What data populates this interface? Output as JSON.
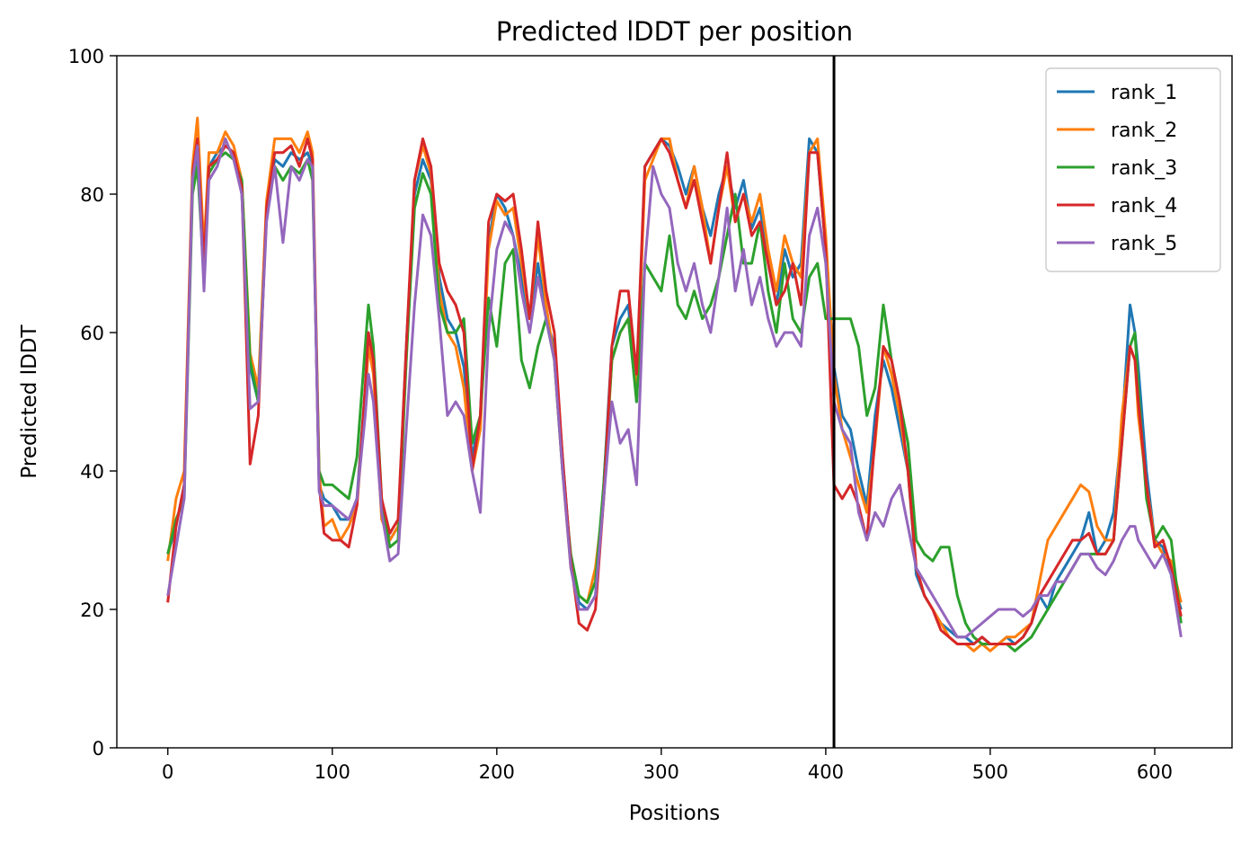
{
  "chart_data": {
    "type": "line",
    "title": "Predicted lDDT per position",
    "xlabel": "Positions",
    "ylabel": "Predicted lDDT",
    "xlim": [
      -31,
      647
    ],
    "ylim": [
      0,
      100
    ],
    "x_ticks": [
      0,
      100,
      200,
      300,
      400,
      500,
      600
    ],
    "y_ticks": [
      0,
      20,
      40,
      60,
      80,
      100
    ],
    "vline_x": 405,
    "legend_position": "top-right",
    "grid": false,
    "series": [
      {
        "name": "rank_1",
        "color": "#1f77b4",
        "x": [
          0,
          5,
          10,
          15,
          18,
          22,
          25,
          30,
          35,
          40,
          45,
          50,
          55,
          60,
          65,
          70,
          75,
          80,
          85,
          88,
          92,
          95,
          100,
          105,
          110,
          115,
          120,
          122,
          125,
          130,
          135,
          140,
          145,
          150,
          155,
          160,
          165,
          170,
          175,
          180,
          185,
          190,
          195,
          200,
          205,
          210,
          215,
          220,
          225,
          230,
          235,
          240,
          245,
          250,
          255,
          260,
          265,
          270,
          275,
          280,
          285,
          290,
          295,
          300,
          305,
          310,
          315,
          320,
          325,
          330,
          335,
          340,
          345,
          350,
          355,
          360,
          365,
          370,
          375,
          380,
          385,
          390,
          395,
          400,
          405,
          410,
          415,
          420,
          425,
          430,
          435,
          440,
          445,
          450,
          455,
          460,
          465,
          470,
          475,
          480,
          485,
          490,
          495,
          500,
          505,
          510,
          515,
          520,
          525,
          530,
          535,
          540,
          545,
          550,
          555,
          560,
          565,
          570,
          575,
          580,
          585,
          588,
          590,
          595,
          600,
          605,
          610,
          616
        ],
        "values": [
          28,
          32,
          38,
          82,
          86,
          70,
          84,
          86,
          87,
          86,
          80,
          55,
          50,
          78,
          85,
          84,
          86,
          85,
          86,
          84,
          38,
          36,
          35,
          33,
          33,
          36,
          52,
          60,
          55,
          35,
          30,
          32,
          58,
          80,
          85,
          82,
          68,
          62,
          60,
          55,
          42,
          48,
          73,
          80,
          78,
          74,
          68,
          62,
          70,
          62,
          58,
          42,
          27,
          21,
          20,
          22,
          38,
          58,
          62,
          64,
          50,
          84,
          86,
          88,
          87,
          84,
          80,
          84,
          78,
          74,
          80,
          84,
          78,
          82,
          75,
          78,
          70,
          64,
          72,
          68,
          70,
          88,
          86,
          72,
          55,
          48,
          46,
          40,
          35,
          48,
          56,
          52,
          46,
          40,
          25,
          22,
          20,
          18,
          17,
          16,
          16,
          15,
          16,
          15,
          15,
          16,
          15,
          16,
          18,
          22,
          20,
          24,
          26,
          28,
          30,
          34,
          28,
          30,
          34,
          46,
          64,
          60,
          55,
          40,
          30,
          29,
          25,
          20
        ]
      },
      {
        "name": "rank_2",
        "color": "#ff7f0e",
        "x": [
          0,
          5,
          10,
          15,
          18,
          22,
          25,
          30,
          35,
          40,
          45,
          50,
          55,
          60,
          65,
          70,
          75,
          80,
          85,
          88,
          92,
          95,
          100,
          105,
          110,
          115,
          120,
          122,
          125,
          130,
          135,
          140,
          145,
          150,
          155,
          160,
          165,
          170,
          175,
          180,
          185,
          190,
          195,
          200,
          205,
          210,
          215,
          220,
          225,
          230,
          235,
          240,
          245,
          250,
          255,
          260,
          265,
          270,
          275,
          280,
          285,
          290,
          295,
          300,
          305,
          310,
          315,
          320,
          325,
          330,
          335,
          340,
          345,
          350,
          355,
          360,
          365,
          370,
          375,
          380,
          385,
          390,
          395,
          400,
          405,
          410,
          415,
          420,
          425,
          430,
          435,
          440,
          445,
          450,
          455,
          460,
          465,
          470,
          475,
          480,
          485,
          490,
          495,
          500,
          505,
          510,
          515,
          520,
          525,
          530,
          535,
          540,
          545,
          550,
          555,
          560,
          565,
          570,
          575,
          580,
          585,
          588,
          590,
          595,
          600,
          605,
          610,
          616
        ],
        "values": [
          27,
          36,
          40,
          84,
          91,
          72,
          86,
          86,
          89,
          87,
          82,
          57,
          52,
          79,
          88,
          88,
          88,
          86,
          89,
          86,
          40,
          32,
          33,
          30,
          32,
          35,
          50,
          58,
          54,
          33,
          30,
          32,
          56,
          82,
          87,
          83,
          66,
          60,
          58,
          52,
          40,
          46,
          72,
          79,
          77,
          78,
          70,
          62,
          74,
          64,
          56,
          40,
          26,
          22,
          21,
          26,
          36,
          56,
          60,
          62,
          52,
          82,
          85,
          88,
          88,
          82,
          78,
          84,
          78,
          70,
          78,
          84,
          76,
          80,
          76,
          80,
          72,
          66,
          74,
          70,
          68,
          86,
          88,
          74,
          54,
          46,
          42,
          38,
          34,
          44,
          58,
          54,
          48,
          40,
          26,
          22,
          20,
          18,
          16,
          15,
          15,
          14,
          15,
          14,
          15,
          16,
          16,
          17,
          18,
          24,
          30,
          32,
          34,
          36,
          38,
          37,
          32,
          30,
          30,
          48,
          58,
          56,
          48,
          38,
          30,
          28,
          27,
          21
        ]
      },
      {
        "name": "rank_3",
        "color": "#2ca02c",
        "x": [
          0,
          5,
          10,
          15,
          18,
          22,
          25,
          30,
          35,
          40,
          45,
          50,
          55,
          60,
          65,
          70,
          75,
          80,
          85,
          88,
          92,
          95,
          100,
          105,
          110,
          115,
          120,
          122,
          125,
          130,
          135,
          140,
          145,
          150,
          155,
          160,
          165,
          170,
          175,
          180,
          185,
          190,
          195,
          200,
          205,
          210,
          215,
          220,
          225,
          230,
          235,
          240,
          245,
          250,
          255,
          260,
          265,
          270,
          275,
          280,
          285,
          290,
          295,
          300,
          305,
          310,
          315,
          320,
          325,
          330,
          335,
          340,
          345,
          350,
          355,
          360,
          365,
          370,
          375,
          380,
          385,
          390,
          395,
          400,
          405,
          410,
          415,
          420,
          425,
          430,
          435,
          440,
          445,
          450,
          455,
          460,
          465,
          470,
          475,
          480,
          485,
          490,
          495,
          500,
          505,
          510,
          515,
          520,
          525,
          530,
          535,
          540,
          545,
          550,
          555,
          560,
          565,
          570,
          575,
          580,
          585,
          588,
          590,
          595,
          600,
          605,
          610,
          616
        ],
        "values": [
          28,
          33,
          36,
          80,
          84,
          68,
          83,
          85,
          86,
          85,
          82,
          56,
          50,
          77,
          84,
          82,
          84,
          83,
          85,
          82,
          40,
          38,
          38,
          37,
          36,
          42,
          58,
          64,
          58,
          36,
          29,
          30,
          56,
          78,
          83,
          80,
          64,
          60,
          60,
          62,
          44,
          48,
          65,
          58,
          70,
          72,
          56,
          52,
          58,
          62,
          56,
          40,
          28,
          22,
          21,
          24,
          38,
          56,
          60,
          62,
          50,
          70,
          68,
          66,
          74,
          64,
          62,
          66,
          62,
          64,
          68,
          74,
          80,
          70,
          70,
          76,
          66,
          60,
          70,
          62,
          60,
          68,
          70,
          62,
          62,
          62,
          62,
          58,
          48,
          52,
          64,
          56,
          50,
          44,
          30,
          28,
          27,
          29,
          29,
          22,
          18,
          16,
          15,
          15,
          15,
          15,
          14,
          15,
          16,
          18,
          20,
          22,
          24,
          26,
          28,
          28,
          28,
          28,
          30,
          44,
          58,
          60,
          52,
          36,
          30,
          32,
          30,
          18
        ]
      },
      {
        "name": "rank_4",
        "color": "#d62728",
        "x": [
          0,
          5,
          10,
          15,
          18,
          22,
          25,
          30,
          35,
          40,
          45,
          50,
          55,
          60,
          65,
          70,
          75,
          80,
          85,
          88,
          92,
          95,
          100,
          105,
          110,
          115,
          120,
          122,
          125,
          130,
          135,
          140,
          145,
          150,
          155,
          160,
          165,
          170,
          175,
          180,
          185,
          190,
          195,
          200,
          205,
          210,
          215,
          220,
          225,
          230,
          235,
          240,
          245,
          250,
          255,
          260,
          265,
          270,
          275,
          280,
          285,
          290,
          295,
          300,
          305,
          310,
          315,
          320,
          325,
          330,
          335,
          340,
          345,
          350,
          355,
          360,
          365,
          370,
          375,
          380,
          385,
          390,
          395,
          400,
          405,
          410,
          415,
          420,
          425,
          430,
          435,
          440,
          445,
          450,
          455,
          460,
          465,
          470,
          475,
          480,
          485,
          490,
          495,
          500,
          505,
          510,
          515,
          520,
          525,
          530,
          535,
          540,
          545,
          550,
          555,
          560,
          565,
          570,
          575,
          580,
          585,
          588,
          590,
          595,
          600,
          605,
          610,
          616
        ],
        "values": [
          21,
          32,
          38,
          83,
          88,
          70,
          84,
          85,
          87,
          86,
          81,
          41,
          48,
          78,
          86,
          86,
          87,
          84,
          88,
          85,
          38,
          31,
          30,
          30,
          29,
          35,
          52,
          60,
          56,
          36,
          31,
          33,
          58,
          82,
          88,
          84,
          70,
          66,
          64,
          60,
          40,
          48,
          76,
          80,
          79,
          80,
          72,
          62,
          76,
          66,
          60,
          42,
          27,
          18,
          17,
          20,
          36,
          58,
          66,
          66,
          54,
          84,
          86,
          88,
          86,
          82,
          78,
          82,
          76,
          70,
          78,
          86,
          76,
          80,
          74,
          76,
          70,
          64,
          66,
          70,
          64,
          86,
          86,
          72,
          38,
          36,
          38,
          35,
          30,
          45,
          58,
          56,
          50,
          40,
          26,
          22,
          20,
          17,
          16,
          15,
          15,
          15,
          16,
          15,
          15,
          15,
          15,
          16,
          18,
          22,
          24,
          26,
          28,
          30,
          30,
          31,
          28,
          28,
          30,
          44,
          58,
          56,
          50,
          38,
          29,
          30,
          26,
          19
        ]
      },
      {
        "name": "rank_5",
        "color": "#9467bd",
        "x": [
          0,
          5,
          10,
          15,
          18,
          22,
          25,
          30,
          35,
          40,
          45,
          50,
          55,
          60,
          65,
          70,
          75,
          80,
          85,
          88,
          92,
          95,
          100,
          105,
          110,
          115,
          120,
          122,
          125,
          130,
          135,
          140,
          145,
          150,
          155,
          160,
          165,
          170,
          175,
          180,
          185,
          190,
          195,
          200,
          205,
          210,
          215,
          220,
          225,
          230,
          235,
          240,
          245,
          250,
          255,
          260,
          265,
          270,
          275,
          280,
          285,
          290,
          295,
          300,
          305,
          310,
          315,
          320,
          325,
          330,
          335,
          340,
          345,
          350,
          355,
          360,
          365,
          370,
          375,
          380,
          385,
          390,
          395,
          400,
          405,
          410,
          415,
          420,
          425,
          430,
          435,
          440,
          445,
          450,
          455,
          460,
          465,
          470,
          475,
          480,
          485,
          490,
          495,
          500,
          505,
          510,
          515,
          520,
          525,
          530,
          535,
          540,
          545,
          550,
          555,
          560,
          565,
          570,
          575,
          580,
          585,
          588,
          590,
          595,
          600,
          605,
          610,
          616
        ],
        "values": [
          22,
          29,
          36,
          82,
          87,
          66,
          82,
          84,
          88,
          85,
          80,
          49,
          50,
          76,
          84,
          73,
          84,
          82,
          85,
          84,
          37,
          35,
          35,
          34,
          33,
          36,
          48,
          54,
          50,
          34,
          27,
          28,
          46,
          64,
          77,
          74,
          62,
          48,
          50,
          48,
          40,
          34,
          60,
          72,
          76,
          74,
          66,
          60,
          68,
          62,
          56,
          40,
          26,
          20,
          20,
          22,
          36,
          50,
          44,
          46,
          38,
          70,
          84,
          80,
          78,
          70,
          66,
          70,
          64,
          60,
          68,
          78,
          66,
          72,
          64,
          68,
          62,
          58,
          60,
          60,
          58,
          74,
          78,
          70,
          50,
          46,
          44,
          34,
          30,
          34,
          32,
          36,
          38,
          32,
          26,
          24,
          22,
          20,
          18,
          16,
          16,
          17,
          18,
          19,
          20,
          20,
          20,
          19,
          20,
          22,
          22,
          24,
          24,
          26,
          28,
          28,
          26,
          25,
          27,
          30,
          32,
          32,
          30,
          28,
          26,
          28,
          25,
          16
        ]
      }
    ]
  }
}
